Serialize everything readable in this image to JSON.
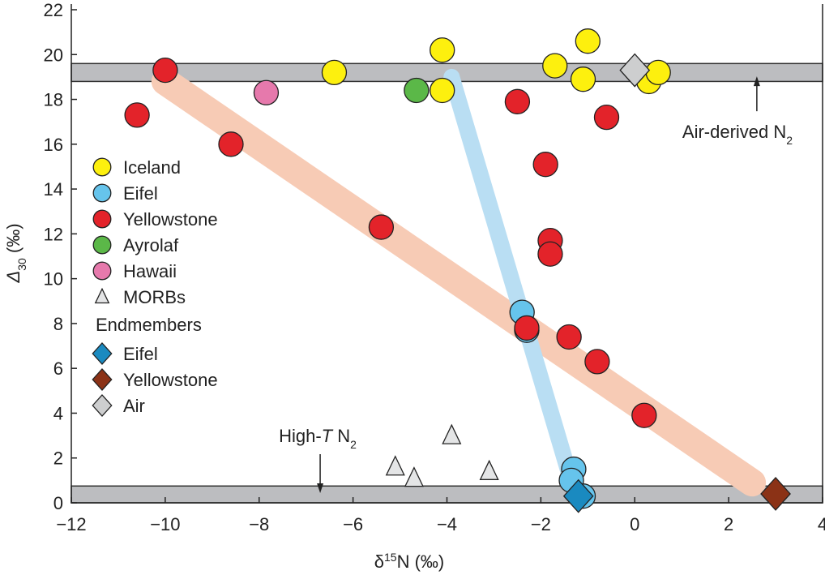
{
  "chart_data": {
    "type": "scatter",
    "xlabel": "δ15N (‰)",
    "xlabel_parts": {
      "base": "δ",
      "sup": "15",
      "rest": "N (‰)"
    },
    "ylabel_parts": {
      "base": "Δ",
      "sub": "30",
      "rest": " (‰)"
    },
    "xlim": [
      -12,
      4
    ],
    "ylim": [
      0,
      22
    ],
    "xticks": [
      -12,
      -10,
      -8,
      -6,
      -4,
      -2,
      0,
      2,
      4
    ],
    "yticks": [
      0,
      2,
      4,
      6,
      8,
      10,
      12,
      14,
      16,
      18,
      20,
      22
    ],
    "grid": false,
    "legend_position": "left",
    "bands": [
      {
        "y": [
          18.8,
          19.6
        ],
        "color": "#bcbdc0"
      },
      {
        "y": [
          0,
          0.75
        ],
        "color": "#bcbdc0"
      }
    ],
    "trends": [
      {
        "color": "#f7cbb5",
        "from": [
          -10,
          18.8
        ],
        "to": [
          2.5,
          0.9
        ]
      },
      {
        "color": "#b9def3",
        "from": [
          -3.9,
          19.0
        ],
        "to": [
          -1.3,
          0.6
        ]
      }
    ],
    "annotations": [
      {
        "text": "Air-derived N",
        "sub": "2",
        "arrow_to": [
          2.6,
          19.1
        ]
      },
      {
        "text": "High-",
        "italic": "T",
        "rest": " N",
        "sub": "2",
        "arrow_to": [
          -6.7,
          0.4
        ]
      }
    ],
    "series": [
      {
        "name": "Iceland",
        "marker": "circle",
        "color": "#fdf00e",
        "points": [
          [
            -6.4,
            19.2
          ],
          [
            -4.1,
            20.2
          ],
          [
            -4.1,
            18.4
          ],
          [
            -1.7,
            19.5
          ],
          [
            -1.0,
            20.6
          ],
          [
            -1.1,
            18.9
          ],
          [
            0.3,
            18.8
          ],
          [
            0.5,
            19.2
          ]
        ]
      },
      {
        "name": "Eifel",
        "marker": "circle",
        "color": "#66c4ec",
        "points": [
          [
            -2.4,
            8.5
          ],
          [
            -2.3,
            7.7
          ],
          [
            -1.3,
            1.5
          ],
          [
            -1.35,
            1.0
          ],
          [
            -1.1,
            0.3
          ]
        ]
      },
      {
        "name": "Yellowstone",
        "marker": "circle",
        "color": "#e3232a",
        "points": [
          [
            -10.0,
            19.3
          ],
          [
            -10.6,
            17.3
          ],
          [
            -8.6,
            16.0
          ],
          [
            -5.4,
            12.3
          ],
          [
            -2.5,
            17.9
          ],
          [
            -0.6,
            17.2
          ],
          [
            -1.9,
            15.1
          ],
          [
            -1.8,
            11.7
          ],
          [
            -1.8,
            11.1
          ],
          [
            -2.3,
            7.8
          ],
          [
            -1.4,
            7.4
          ],
          [
            -0.8,
            6.3
          ],
          [
            0.2,
            3.9
          ]
        ]
      },
      {
        "name": "Ayrolaf",
        "marker": "circle",
        "color": "#5bb848",
        "points": [
          [
            -4.65,
            18.4
          ]
        ]
      },
      {
        "name": "Hawaii",
        "marker": "circle",
        "color": "#e679ac",
        "points": [
          [
            -7.85,
            18.3
          ]
        ]
      },
      {
        "name": "MORBs",
        "marker": "triangle",
        "color": "#e4e5e6",
        "points": [
          [
            -5.1,
            1.6
          ],
          [
            -4.7,
            1.1
          ],
          [
            -3.9,
            3.0
          ],
          [
            -3.1,
            1.4
          ]
        ]
      }
    ],
    "legend_heading": "Endmembers",
    "endmembers": [
      {
        "name": "Eifel",
        "marker": "diamond",
        "color": "#1a8ac0",
        "points": [
          [
            -1.2,
            0.3
          ]
        ]
      },
      {
        "name": "Yellowstone",
        "marker": "diamond",
        "color": "#8b3216",
        "points": [
          [
            3.0,
            0.4
          ]
        ]
      },
      {
        "name": "Air",
        "marker": "diamond",
        "color": "#cdcecf",
        "points": [
          [
            0.0,
            19.3
          ]
        ]
      }
    ]
  }
}
